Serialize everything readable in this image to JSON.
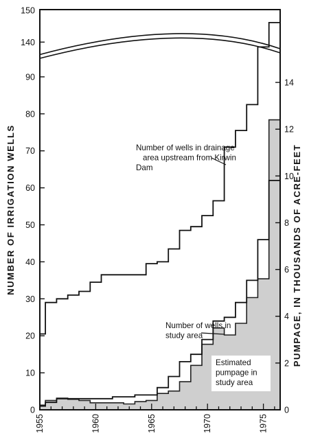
{
  "chart_data": {
    "type": "line",
    "ylabel_left": "NUMBER OF IRRIGATION WELLS",
    "ylabel_right": "PUMPAGE, IN THOUSANDS OF ACRE-FEET",
    "x_ticks": [
      "1955",
      "1960",
      "1965",
      "1970",
      "1975"
    ],
    "y_left_ticks_lower": [
      "0",
      "10",
      "20",
      "30",
      "40",
      "50",
      "60",
      "70",
      "80",
      "90"
    ],
    "y_left_ticks_upper": [
      "140",
      "150"
    ],
    "y_right_ticks": [
      "0",
      "2",
      "4",
      "6",
      "8",
      "10",
      "12",
      "14"
    ],
    "axis_break": {
      "lower_max": 95,
      "upper_min": 135,
      "upper_max": 150
    },
    "xlim": [
      1955,
      1976.5
    ],
    "ylim_left": [
      0,
      150
    ],
    "ylim_right": [
      0,
      15
    ],
    "series": [
      {
        "name": "Number of wells in drainage area upstream from Kirwin Dam",
        "axis": "left",
        "style": "step",
        "x": [
          1955,
          1955.5,
          1956.5,
          1957.5,
          1958.5,
          1959.5,
          1960.5,
          1961.5,
          1964.5,
          1965.5,
          1966.5,
          1967.5,
          1968.5,
          1969.5,
          1970.5,
          1971.5,
          1972.5,
          1973.5,
          1974.5,
          1975.5,
          1976.5
        ],
        "values": [
          20.5,
          29,
          30,
          31,
          32,
          34.5,
          36.5,
          36.5,
          39.5,
          40,
          43.5,
          48.5,
          49.5,
          52.5,
          56.5,
          71,
          75.5,
          82.5,
          138.5,
          146,
          146
        ]
      },
      {
        "name": "Number of wells in study area",
        "axis": "left",
        "style": "step",
        "x": [
          1955,
          1955.5,
          1956.5,
          1957.5,
          1958.5,
          1959.5,
          1960.5,
          1961.5,
          1962.5,
          1963.5,
          1964.5,
          1965.5,
          1966.5,
          1967.5,
          1968.5,
          1969.5,
          1970.5,
          1971.5,
          1972.5,
          1973.5,
          1974.5,
          1975.5,
          1976.5
        ],
        "values": [
          1,
          2,
          3,
          3,
          3,
          3,
          3,
          3.5,
          3.5,
          4,
          4,
          6,
          9,
          13,
          15,
          19,
          24,
          25,
          29,
          35,
          46,
          62,
          62
        ]
      },
      {
        "name": "Estimated pumpage in study area",
        "axis": "right",
        "style": "step-area",
        "x": [
          1955,
          1955.5,
          1956.5,
          1957.5,
          1958.5,
          1959.5,
          1960.5,
          1961.5,
          1962.5,
          1963.5,
          1964.5,
          1965.5,
          1966.5,
          1967.5,
          1968.5,
          1969.5,
          1970.5,
          1971.5,
          1972.5,
          1973.5,
          1974.5,
          1975.5,
          1976.5
        ],
        "values": [
          0.2,
          0.4,
          0.5,
          0.45,
          0.4,
          0.3,
          0.3,
          0.3,
          0.25,
          0.35,
          0.4,
          0.7,
          0.8,
          1.2,
          1.9,
          2.8,
          3.5,
          3.2,
          3.7,
          4.8,
          5.6,
          12.4,
          12.4
        ]
      }
    ],
    "annotations": [
      {
        "lines": [
          "Number of wells in drainage",
          "area upstream from Kirwin",
          "Dam"
        ]
      },
      {
        "lines": [
          "Number of wells in",
          "study area"
        ]
      },
      {
        "lines": [
          "Estimated",
          "pumpage in",
          "study area"
        ]
      }
    ]
  }
}
